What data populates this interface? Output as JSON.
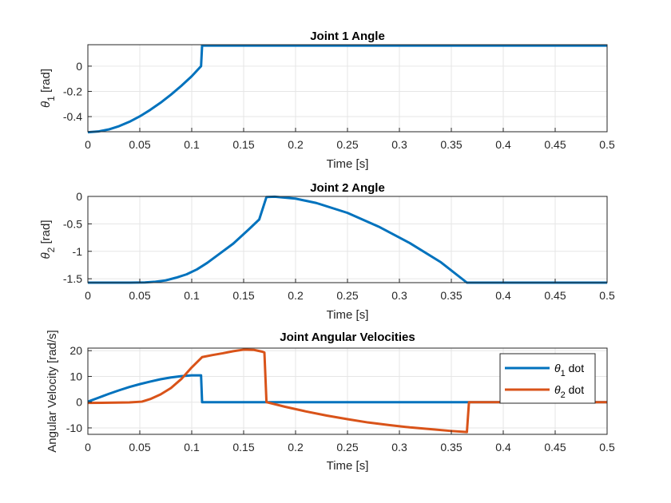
{
  "chart_data": [
    {
      "type": "line",
      "title": "Joint 1 Angle",
      "xlabel": "Time [s]",
      "ylabel": {
        "symbol": "θ",
        "sub": "1",
        "unit": " [rad]"
      },
      "xlim": [
        0,
        0.5
      ],
      "ylim": [
        -0.52,
        0.17
      ],
      "xticks": [
        "0",
        "0.05",
        "0.1",
        "0.15",
        "0.2",
        "0.25",
        "0.3",
        "0.35",
        "0.4",
        "0.45",
        "0.5"
      ],
      "xtick_values": [
        0,
        0.05,
        0.1,
        0.15,
        0.2,
        0.25,
        0.3,
        0.35,
        0.4,
        0.45,
        0.5
      ],
      "yticks": [
        "-0.4",
        "-0.2",
        "0"
      ],
      "ytick_values": [
        -0.4,
        -0.2,
        0
      ],
      "grid": true,
      "series": [
        {
          "color": "#0072BD",
          "points": [
            [
              0,
              -0.5236
            ],
            [
              0.01,
              -0.518
            ],
            [
              0.02,
              -0.502
            ],
            [
              0.03,
              -0.476
            ],
            [
              0.04,
              -0.441
            ],
            [
              0.05,
              -0.398
            ],
            [
              0.06,
              -0.347
            ],
            [
              0.07,
              -0.29
            ],
            [
              0.08,
              -0.226
            ],
            [
              0.09,
              -0.156
            ],
            [
              0.1,
              -0.08
            ],
            [
              0.109,
              0.0
            ],
            [
              0.11,
              0.1626
            ],
            [
              0.5,
              0.1626
            ]
          ]
        }
      ]
    },
    {
      "type": "line",
      "title": "Joint 2 Angle",
      "xlabel": "Time [s]",
      "ylabel": {
        "symbol": "θ",
        "sub": "2",
        "unit": " [rad]"
      },
      "xlim": [
        0,
        0.5
      ],
      "ylim": [
        -1.5708,
        0
      ],
      "xticks": [
        "0",
        "0.05",
        "0.1",
        "0.15",
        "0.2",
        "0.25",
        "0.3",
        "0.35",
        "0.4",
        "0.45",
        "0.5"
      ],
      "xtick_values": [
        0,
        0.05,
        0.1,
        0.15,
        0.2,
        0.25,
        0.3,
        0.35,
        0.4,
        0.45,
        0.5
      ],
      "yticks": [
        "-1.5",
        "-1",
        "-0.5",
        "0"
      ],
      "ytick_values": [
        -1.5,
        -1,
        -0.5,
        0
      ],
      "grid": true,
      "series": [
        {
          "color": "#0072BD",
          "points": [
            [
              0,
              -1.5708
            ],
            [
              0.04,
              -1.5708
            ],
            [
              0.055,
              -1.5675
            ],
            [
              0.065,
              -1.555
            ],
            [
              0.075,
              -1.53
            ],
            [
              0.085,
              -1.48
            ],
            [
              0.095,
              -1.42
            ],
            [
              0.105,
              -1.33
            ],
            [
              0.115,
              -1.21
            ],
            [
              0.125,
              -1.07
            ],
            [
              0.14,
              -0.86
            ],
            [
              0.155,
              -0.6
            ],
            [
              0.165,
              -0.42
            ],
            [
              0.172,
              -0.01
            ],
            [
              0.18,
              -0.005
            ],
            [
              0.2,
              -0.04
            ],
            [
              0.22,
              -0.12
            ],
            [
              0.25,
              -0.3
            ],
            [
              0.28,
              -0.55
            ],
            [
              0.31,
              -0.85
            ],
            [
              0.34,
              -1.2
            ],
            [
              0.365,
              -1.5708
            ],
            [
              0.5,
              -1.5708
            ]
          ]
        }
      ]
    },
    {
      "type": "line",
      "title": "Joint Angular Velocities",
      "xlabel": "Time [s]",
      "ylabel": {
        "text": "Angular Velocity [rad/s]"
      },
      "xlim": [
        0,
        0.5
      ],
      "ylim": [
        -12.5,
        21
      ],
      "xticks": [
        "0",
        "0.05",
        "0.1",
        "0.15",
        "0.2",
        "0.25",
        "0.3",
        "0.35",
        "0.4",
        "0.45",
        "0.5"
      ],
      "xtick_values": [
        0,
        0.05,
        0.1,
        0.15,
        0.2,
        0.25,
        0.3,
        0.35,
        0.4,
        0.45,
        0.5
      ],
      "yticks": [
        "-10",
        "0",
        "10",
        "20"
      ],
      "ytick_values": [
        -10,
        0,
        10,
        20
      ],
      "grid": true,
      "legend": "top-right",
      "series": [
        {
          "name": "θ1 dot",
          "legend_symbol": "θ",
          "legend_sub": "1",
          "legend_rest": " dot",
          "color": "#0072BD",
          "points": [
            [
              0,
              0.2
            ],
            [
              0.01,
              1.7
            ],
            [
              0.02,
              3.2
            ],
            [
              0.03,
              4.6
            ],
            [
              0.04,
              5.9
            ],
            [
              0.05,
              7.0
            ],
            [
              0.06,
              8.0
            ],
            [
              0.07,
              8.9
            ],
            [
              0.08,
              9.6
            ],
            [
              0.09,
              10.1
            ],
            [
              0.1,
              10.4
            ],
            [
              0.109,
              10.4
            ],
            [
              0.11,
              0
            ],
            [
              0.5,
              0
            ]
          ]
        },
        {
          "name": "θ2 dot",
          "legend_symbol": "θ",
          "legend_sub": "2",
          "legend_rest": " dot",
          "color": "#D95319",
          "points": [
            [
              0,
              -0.3
            ],
            [
              0.04,
              -0.1
            ],
            [
              0.052,
              0.2
            ],
            [
              0.06,
              1.2
            ],
            [
              0.07,
              3.0
            ],
            [
              0.08,
              5.5
            ],
            [
              0.09,
              9.0
            ],
            [
              0.1,
              13.5
            ],
            [
              0.11,
              17.5
            ],
            [
              0.12,
              18.3
            ],
            [
              0.13,
              19.0
            ],
            [
              0.14,
              19.8
            ],
            [
              0.15,
              20.4
            ],
            [
              0.16,
              20.3
            ],
            [
              0.168,
              19.6
            ],
            [
              0.17,
              19.3
            ],
            [
              0.172,
              0
            ],
            [
              0.19,
              -1.8
            ],
            [
              0.21,
              -3.6
            ],
            [
              0.23,
              -5.2
            ],
            [
              0.25,
              -6.6
            ],
            [
              0.27,
              -7.9
            ],
            [
              0.29,
              -8.9
            ],
            [
              0.31,
              -9.8
            ],
            [
              0.33,
              -10.5
            ],
            [
              0.35,
              -11.2
            ],
            [
              0.365,
              -11.6
            ],
            [
              0.367,
              0
            ],
            [
              0.5,
              0
            ]
          ]
        }
      ]
    }
  ]
}
